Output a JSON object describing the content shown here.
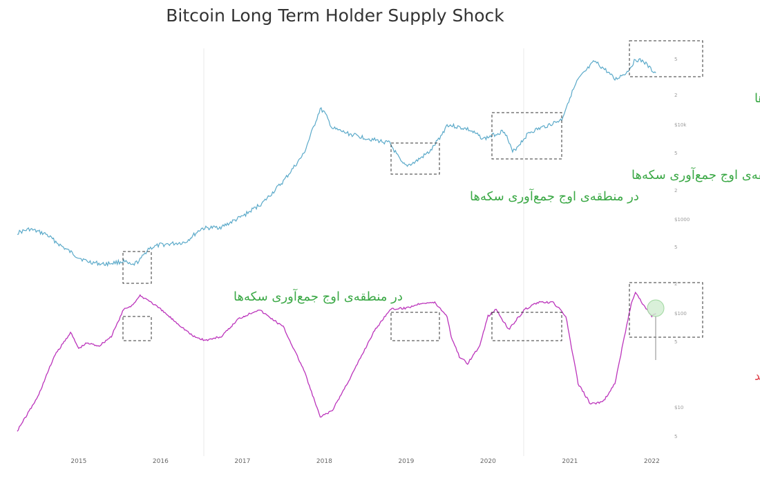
{
  "chart_data": {
    "type": "line",
    "title": "Bitcoin Long Term Holder Supply Shock",
    "x_ticks": [
      "2015",
      "2016",
      "2017",
      "2018",
      "2019",
      "2020",
      "2021",
      "2022"
    ],
    "y_ticks": [
      "5",
      "$100",
      "2",
      "5",
      "$1000",
      "2",
      "5",
      "$10k",
      "2",
      "5",
      "$10"
    ],
    "y_scale": "log",
    "grid": "vertical lines at 2016.5 and 2020.4",
    "series": [
      {
        "color": "#5aa9c9",
        "axis": "right (log, price)",
        "x": [
          2014.25,
          2014.4,
          2014.6,
          2014.8,
          2015.0,
          2015.1,
          2015.3,
          2015.55,
          2015.65,
          2015.75,
          2015.85,
          2016.0,
          2016.3,
          2016.5,
          2016.75,
          2017.0,
          2017.25,
          2017.5,
          2017.75,
          2017.95,
          2018.0,
          2018.1,
          2018.3,
          2018.6,
          2018.8,
          2018.95,
          2019.0,
          2019.1,
          2019.3,
          2019.45,
          2019.5,
          2019.75,
          2019.95,
          2020.0,
          2020.2,
          2020.3,
          2020.5,
          2020.75,
          2020.9,
          2021.0,
          2021.1,
          2021.3,
          2021.45,
          2021.55,
          2021.7,
          2021.8,
          2021.9,
          2022.0,
          2022.05
        ],
        "y": [
          580,
          640,
          560,
          400,
          300,
          270,
          250,
          270,
          240,
          280,
          380,
          420,
          450,
          650,
          680,
          900,
          1300,
          2300,
          4800,
          16000,
          14500,
          9500,
          8200,
          7000,
          6400,
          3700,
          3500,
          3800,
          5200,
          8500,
          10500,
          9300,
          7200,
          7500,
          9000,
          5000,
          8500,
          10500,
          12000,
          22000,
          35000,
          57000,
          44000,
          35000,
          43000,
          60000,
          57000,
          45000,
          42000
        ]
      },
      {
        "color": "#bb33bb",
        "axis": "supply shock ratio",
        "x": [
          2014.25,
          2014.5,
          2014.7,
          2014.9,
          2015.0,
          2015.1,
          2015.25,
          2015.4,
          2015.55,
          2015.65,
          2015.75,
          2015.85,
          2016.0,
          2016.2,
          2016.4,
          2016.55,
          2016.75,
          2016.95,
          2017.2,
          2017.5,
          2017.75,
          2017.95,
          2018.1,
          2018.35,
          2018.6,
          2018.8,
          2019.0,
          2019.2,
          2019.35,
          2019.5,
          2019.55,
          2019.65,
          2019.75,
          2019.9,
          2020.0,
          2020.1,
          2020.25,
          2020.45,
          2020.6,
          2020.8,
          2020.95,
          2021.1,
          2021.25,
          2021.4,
          2021.55,
          2021.65,
          2021.75,
          2021.8,
          2021.9,
          2022.0,
          2022.05
        ],
        "y": [
          5,
          30,
          60,
          78,
          66,
          70,
          68,
          75,
          95,
          98,
          105,
          102,
          95,
          85,
          75,
          72,
          75,
          88,
          95,
          82,
          50,
          15,
          20,
          48,
          78,
          95,
          96,
          100,
          100,
          90,
          75,
          60,
          55,
          68,
          90,
          95,
          80,
          95,
          100,
          100,
          90,
          40,
          25,
          26,
          40,
          70,
          100,
          108,
          98,
          90,
          92
        ]
      }
    ],
    "annotations": {
      "accumulation": "در منطقه‌ی اوج جمع‌آوری سکه‌ها",
      "stopped_selling": "دست از فروش کشیده‌اند"
    }
  }
}
